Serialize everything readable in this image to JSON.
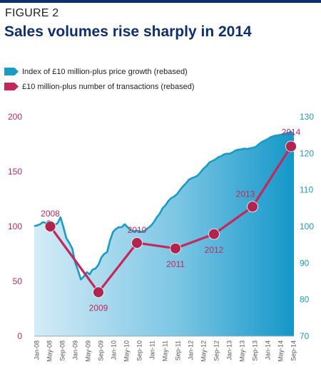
{
  "figure_label": "FIGURE 2",
  "title": "Sales volumes rise sharply in 2014",
  "colors": {
    "brand_navy": "#0d2f6e",
    "index_series": "#1a9ac6",
    "transactions_series": "#c2285a",
    "left_axis": "#c2285a",
    "right_axis": "#1a9ac6"
  },
  "chart_data": {
    "type": "area",
    "title": "",
    "legend": [
      "Index of £10 million-plus price growth (rebased)",
      "£10 million-plus number of transactions (rebased)"
    ],
    "legend_position": "top-left",
    "grid": false,
    "x_labels": [
      "Jan-08",
      "May-08",
      "Sep-08",
      "Jan-09",
      "May-09",
      "Sep-09",
      "Jan-10",
      "May-10",
      "Sep-10",
      "Jan-11",
      "May-11",
      "Sep-11",
      "Jan-12",
      "May-12",
      "Sep-12",
      "Jan-13",
      "May-13",
      "Sep-13",
      "Jan-14",
      "May-14",
      "Sep-14"
    ],
    "left_axis": {
      "ticks": [
        "0",
        "50",
        "100",
        "150",
        "200"
      ],
      "min": 0,
      "max": 200
    },
    "right_axis": {
      "ticks": [
        "70",
        "80",
        "90",
        "100",
        "110",
        "120",
        "130"
      ],
      "min": 70,
      "max": 130
    },
    "series": [
      {
        "name": "Index of £10 million-plus price growth (rebased)",
        "axis": "right",
        "type": "area",
        "values": [
          100.1,
          100.3,
          100.6,
          101.2,
          100.9,
          101.5,
          101.2,
          100.4,
          100.9,
          102.5,
          99.8,
          96.8,
          95.5,
          94.0,
          90.2,
          88.0,
          85.5,
          86.3,
          87.5,
          86.9,
          88.2,
          88.5,
          89.5,
          91.5,
          92.5,
          93.0,
          96.2,
          98.5,
          99.3,
          99.8,
          99.8,
          100.6,
          99.8,
          99.0,
          98.6,
          98.9,
          98.7,
          98.5,
          98.9,
          99.6,
          100.2,
          101.2,
          102.5,
          103.5,
          105.0,
          105.8,
          107.0,
          107.8,
          108.2,
          108.9,
          110.0,
          111.0,
          111.8,
          112.8,
          113.2,
          113.5,
          113.9,
          114.8,
          115.8,
          116.5,
          117.5,
          117.9,
          118.3,
          118.9,
          119.2,
          119.7,
          119.9,
          119.9,
          120.3,
          120.8,
          121.0,
          121.1,
          121.3,
          121.2,
          121.4,
          121.5,
          121.8,
          122.5,
          123.1,
          123.5,
          123.9,
          124.4,
          124.7,
          124.9,
          125.0,
          125.2,
          125.4,
          125.6,
          125.9,
          125.1
        ]
      },
      {
        "name": "£10 million-plus number of transactions (rebased)",
        "axis": "left",
        "type": "line",
        "points": [
          {
            "label": "2008",
            "x_month": 5,
            "value": 100
          },
          {
            "label": "2009",
            "x_month": 20,
            "value": 40
          },
          {
            "label": "2010",
            "x_month": 32,
            "value": 85
          },
          {
            "label": "2011",
            "x_month": 44,
            "value": 80
          },
          {
            "label": "2012",
            "x_month": 56,
            "value": 93
          },
          {
            "label": "2013",
            "x_month": 68,
            "value": 118
          },
          {
            "label": "2014",
            "x_month": 80,
            "value": 173
          }
        ]
      }
    ]
  }
}
